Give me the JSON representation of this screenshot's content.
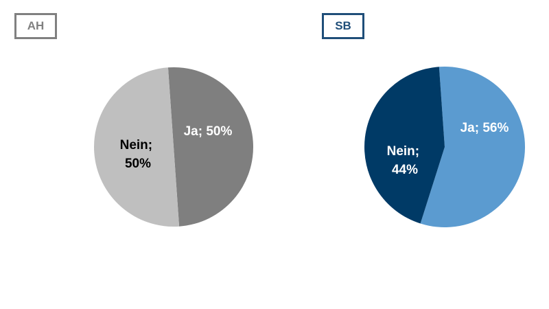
{
  "chart_data": [
    {
      "type": "pie",
      "title": "AH",
      "slices": [
        {
          "label": "Ja",
          "value": 50,
          "text": "Ja; 50%",
          "color": "#7f7f7f",
          "text_color": "#ffffff"
        },
        {
          "label": "Nein",
          "value": 50,
          "text_lines": [
            "Nein;",
            "50%"
          ],
          "color": "#bfbfbf",
          "text_color": "#000000"
        }
      ],
      "tag_color": "#808080",
      "tag_text_color": "#808080",
      "start_angle_deg": -4
    },
    {
      "type": "pie",
      "title": "SB",
      "slices": [
        {
          "label": "Ja",
          "value": 56,
          "text": "Ja; 56%",
          "color": "#5b9bd0",
          "text_color": "#ffffff"
        },
        {
          "label": "Nein",
          "value": 44,
          "text_lines": [
            "Nein;",
            "44%"
          ],
          "color": "#003a66",
          "text_color": "#ffffff"
        }
      ],
      "tag_color": "#1f4e79",
      "tag_text_color": "#1f4e79",
      "start_angle_deg": -4
    }
  ]
}
